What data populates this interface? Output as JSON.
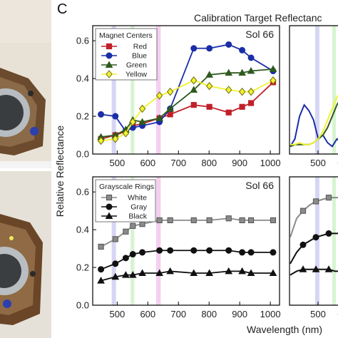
{
  "panel_letter": "C",
  "figure_title": "Calibration Target Reflectanc",
  "ylabel": "Relative Reflectance",
  "xlabel": "Wavelength (nm)",
  "colors": {
    "red": "#c0202a",
    "blue": "#1a2ea8",
    "green": "#2e5a1e",
    "yellow": "#f2f230",
    "white_ring": "#8a8a8a",
    "gray_ring": "#111111",
    "black_ring": "#111111",
    "band_blue": "#c8c8f0",
    "band_green": "#c8f0c0",
    "band_magenta": "#f0c0ea"
  },
  "chart_data": [
    {
      "type": "line",
      "sol_label": "Sol 66",
      "legend_title": "Magnet Centers",
      "legend_position": "top-left",
      "xlim": [
        420,
        1030
      ],
      "ylim": [
        0,
        0.68
      ],
      "xticks": [
        "500",
        "600",
        "700",
        "800",
        "900",
        "1000"
      ],
      "yticks": [
        "0.0",
        "0.2",
        "0.4",
        "0.6"
      ],
      "x": [
        447,
        494,
        528,
        551,
        582,
        638,
        673,
        750,
        801,
        864,
        908,
        937,
        1009
      ],
      "series": [
        {
          "name": "Red",
          "marker": "square",
          "values": [
            0.08,
            0.1,
            0.12,
            0.15,
            0.16,
            0.19,
            0.21,
            0.26,
            0.25,
            0.22,
            0.25,
            0.27,
            0.38
          ]
        },
        {
          "name": "Blue",
          "marker": "circle",
          "values": [
            0.21,
            0.2,
            0.12,
            0.14,
            0.15,
            0.17,
            0.24,
            0.56,
            0.56,
            0.58,
            0.55,
            0.51,
            0.44
          ]
        },
        {
          "name": "Green",
          "marker": "triangle",
          "values": [
            0.09,
            0.1,
            0.13,
            0.18,
            0.17,
            0.19,
            0.24,
            0.34,
            0.42,
            0.43,
            0.43,
            0.44,
            0.45
          ]
        },
        {
          "name": "Yellow",
          "marker": "diamond",
          "values": [
            0.07,
            0.08,
            0.11,
            0.17,
            0.24,
            0.31,
            0.33,
            0.39,
            0.36,
            0.34,
            0.33,
            0.33,
            0.39
          ]
        }
      ],
      "bands": [
        {
          "color": "band_blue",
          "range": [
            482,
            496
          ]
        },
        {
          "color": "band_green",
          "range": [
            544,
            556
          ]
        },
        {
          "color": "band_magenta",
          "range": [
            627,
            642
          ]
        }
      ]
    },
    {
      "type": "line",
      "sol_label": "Sol 66",
      "legend_title": "Grayscale Rings",
      "legend_position": "top-left",
      "xlim": [
        420,
        1030
      ],
      "ylim": [
        0,
        0.68
      ],
      "xticks": [
        "500",
        "600",
        "700",
        "800",
        "900",
        "1000"
      ],
      "yticks": [
        "0.0",
        "0.2",
        "0.4",
        "0.6"
      ],
      "x": [
        447,
        494,
        528,
        551,
        582,
        638,
        673,
        750,
        801,
        864,
        908,
        937,
        1009
      ],
      "series": [
        {
          "name": "White",
          "marker": "square",
          "values": [
            0.31,
            0.35,
            0.39,
            0.42,
            0.43,
            0.45,
            0.45,
            0.45,
            0.45,
            0.46,
            0.45,
            0.45,
            0.45
          ]
        },
        {
          "name": "Gray",
          "marker": "circle",
          "values": [
            0.19,
            0.22,
            0.25,
            0.27,
            0.28,
            0.29,
            0.29,
            0.29,
            0.29,
            0.29,
            0.28,
            0.28,
            0.28
          ]
        },
        {
          "name": "Black",
          "marker": "triangle",
          "values": [
            0.13,
            0.15,
            0.16,
            0.16,
            0.17,
            0.17,
            0.18,
            0.17,
            0.17,
            0.18,
            0.18,
            0.17,
            0.17
          ]
        }
      ],
      "bands": [
        {
          "color": "band_blue",
          "range": [
            482,
            496
          ]
        },
        {
          "color": "band_green",
          "range": [
            544,
            556
          ]
        },
        {
          "color": "band_magenta",
          "range": [
            627,
            642
          ]
        }
      ]
    }
  ],
  "side_panels": {
    "xticks": [
      "500",
      "600"
    ],
    "top_blue_curve": [
      0.04,
      0.08,
      0.2,
      0.26,
      0.23,
      0.18,
      0.08,
      0.1,
      0.06,
      0.04,
      0.08,
      0.06
    ],
    "top_yellow_curve": [
      0.05,
      0.05,
      0.06,
      0.05,
      0.05,
      0.06,
      0.08,
      0.12,
      0.18,
      0.24,
      0.3,
      0.34
    ],
    "top_green_curve": [
      0.04,
      0.05,
      0.05,
      0.05,
      0.05,
      0.06,
      0.08,
      0.1,
      0.14,
      0.2,
      0.26,
      0.3
    ],
    "bottom_white_curve": [
      0.36,
      0.46,
      0.5,
      0.53,
      0.55,
      0.56,
      0.57,
      0.57,
      0.57
    ],
    "bottom_gray_curve": [
      0.22,
      0.28,
      0.32,
      0.34,
      0.36,
      0.37,
      0.38,
      0.38,
      0.38
    ],
    "bottom_black_curve": [
      0.16,
      0.18,
      0.19,
      0.19,
      0.19,
      0.19,
      0.19,
      0.18,
      0.18
    ]
  }
}
